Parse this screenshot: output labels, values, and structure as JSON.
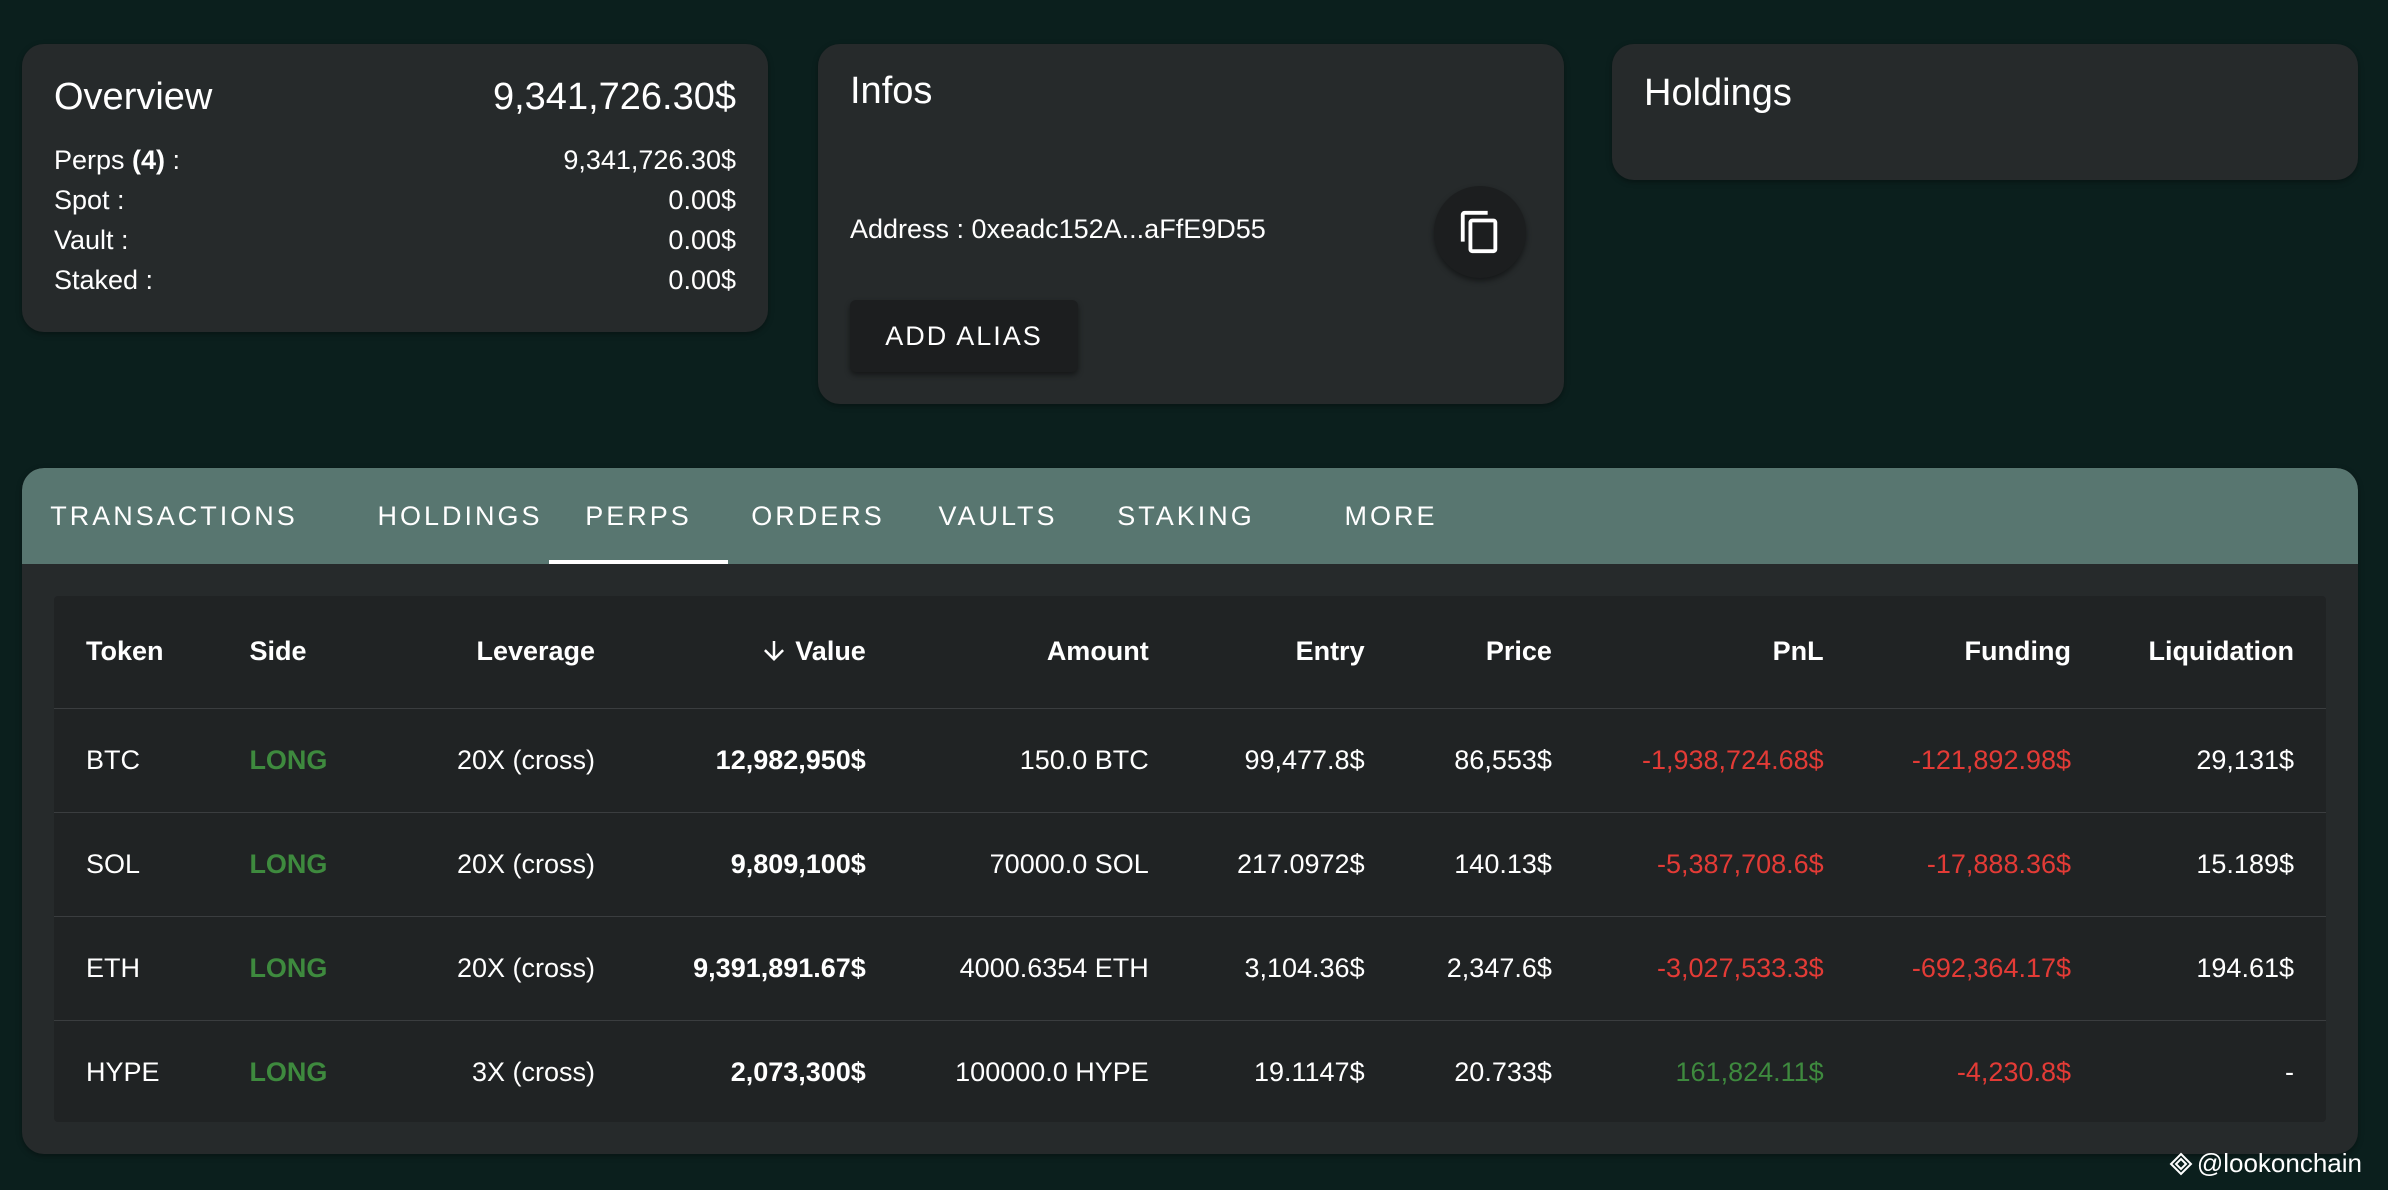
{
  "overview": {
    "title": "Overview",
    "total": "9,341,726.30$",
    "rows": [
      {
        "label_pre": "Perps ",
        "label_bold": "(4)",
        "label_post": " :",
        "value": "9,341,726.30$"
      },
      {
        "label_pre": "Spot :",
        "label_bold": "",
        "label_post": "",
        "value": "0.00$"
      },
      {
        "label_pre": "Vault :",
        "label_bold": "",
        "label_post": "",
        "value": "0.00$"
      },
      {
        "label_pre": "Staked :",
        "label_bold": "",
        "label_post": "",
        "value": "0.00$"
      }
    ]
  },
  "infos": {
    "title": "Infos",
    "address": "Address : 0xeadc152A...aFfE9D55",
    "add_alias_label": "ADD ALIAS",
    "copy_icon": "copy-icon"
  },
  "holdings_card": {
    "title": "Holdings"
  },
  "tabs": [
    {
      "label": "TRANSACTIONS"
    },
    {
      "label": "HOLDINGS"
    },
    {
      "label": "PERPS"
    },
    {
      "label": "ORDERS"
    },
    {
      "label": "VAULTS"
    },
    {
      "label": "STAKING"
    },
    {
      "label": "MORE"
    }
  ],
  "active_tab": "PERPS",
  "table": {
    "sort_icon": "arrow-down-icon",
    "columns": [
      "Token",
      "Side",
      "Leverage",
      "Value",
      "Amount",
      "Entry",
      "Price",
      "PnL",
      "Funding",
      "Liquidation"
    ],
    "rows": [
      {
        "token": "BTC",
        "side": "LONG",
        "leverage": "20X (cross)",
        "value": "12,982,950$",
        "amount": "150.0 BTC",
        "entry": "99,477.8$",
        "price": "86,553$",
        "pnl": "-1,938,724.68$",
        "funding": "-121,892.98$",
        "liquidation": "29,131$"
      },
      {
        "token": "SOL",
        "side": "LONG",
        "leverage": "20X (cross)",
        "value": "9,809,100$",
        "amount": "70000.0 SOL",
        "entry": "217.0972$",
        "price": "140.13$",
        "pnl": "-5,387,708.6$",
        "funding": "-17,888.36$",
        "liquidation": "15.189$"
      },
      {
        "token": "ETH",
        "side": "LONG",
        "leverage": "20X (cross)",
        "value": "9,391,891.67$",
        "amount": "4000.6354 ETH",
        "entry": "3,104.36$",
        "price": "2,347.6$",
        "pnl": "-3,027,533.3$",
        "funding": "-692,364.17$",
        "liquidation": "194.61$"
      },
      {
        "token": "HYPE",
        "side": "LONG",
        "leverage": "3X (cross)",
        "value": "2,073,300$",
        "amount": "100000.0 HYPE",
        "entry": "19.1147$",
        "price": "20.733$",
        "pnl": "161,824.11$",
        "funding": "-4,230.8$",
        "liquidation": "-"
      }
    ]
  },
  "colors": {
    "background": "#0b1f1d",
    "card": "#262a2b",
    "tabbar": "#587670",
    "long_green": "#3e8a3e",
    "negative_red": "#e33b36"
  },
  "watermark": "@lookonchain"
}
